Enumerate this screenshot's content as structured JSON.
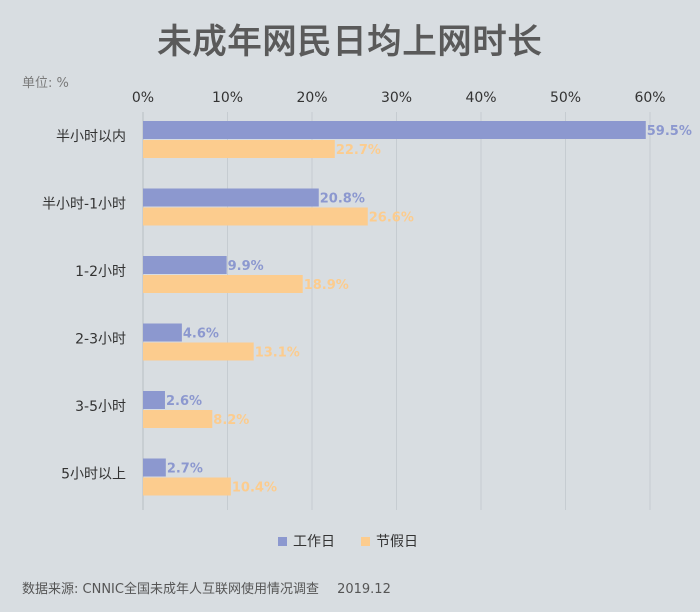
{
  "title": "未成年网民日均上网时长",
  "unit_label": "单位: %",
  "source": {
    "label": "数据来源: CNNIC全国未成年人互联网使用情况调查",
    "date": "2019.12"
  },
  "colors": {
    "workday": "#8c98cf",
    "holiday": "#fccc8e",
    "grid": "#c6ccd1",
    "axis_text": "#333333"
  },
  "chart_data": {
    "type": "bar",
    "orientation": "horizontal",
    "categories": [
      "半小时以内",
      "半小时-1小时",
      "1-2小时",
      "2-3小时",
      "3-5小时",
      "5小时以上"
    ],
    "series": [
      {
        "name": "工作日",
        "values": [
          59.5,
          20.8,
          9.9,
          4.6,
          2.6,
          2.7
        ],
        "labels": [
          "59.5%",
          "20.8%",
          "9.9%",
          "4.6%",
          "2.6%",
          "2.7%"
        ]
      },
      {
        "name": "节假日",
        "values": [
          22.7,
          26.6,
          18.9,
          13.1,
          8.2,
          10.4
        ],
        "labels": [
          "22.7%",
          "26.6%",
          "18.9%",
          "13.1%",
          "8.2%",
          "10.4%"
        ]
      }
    ],
    "xlim": [
      0,
      60
    ],
    "ticks": [
      "0%",
      "10%",
      "20%",
      "30%",
      "40%",
      "50%",
      "60%"
    ],
    "tick_values": [
      0,
      10,
      20,
      30,
      40,
      50,
      60
    ],
    "grid": true,
    "legend_position": "bottom"
  }
}
